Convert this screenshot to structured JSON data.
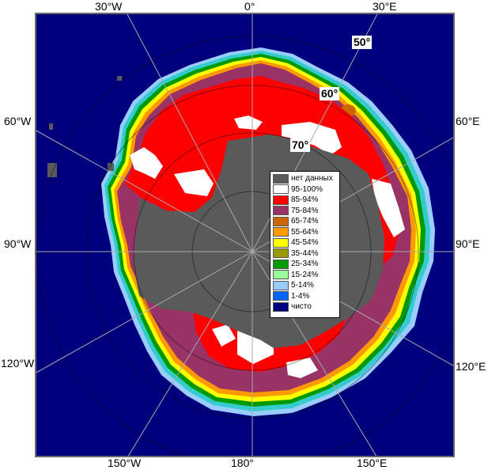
{
  "map": {
    "longitude_labels": {
      "top": [
        "30°W",
        "0°",
        "30°E"
      ],
      "left": [
        "60°W",
        "90°W",
        "120°W"
      ],
      "right": [
        "60°E",
        "90°E",
        "120°E"
      ],
      "bottom": [
        "150°W",
        "180°",
        "150°E"
      ]
    },
    "latitude_labels": [
      "50°",
      "60°",
      "70°"
    ],
    "colors": {
      "ocean_clear": "#00007f",
      "land_no_data": "#5a5a5a",
      "frame": "#6a6a6a",
      "grid": "#a8a8a8"
    }
  },
  "legend": {
    "items": [
      {
        "label": "нет данных",
        "color": "#5a5a5a"
      },
      {
        "label": "95-100%",
        "color": "#ffffff"
      },
      {
        "label": "85-94%",
        "color": "#ff0000"
      },
      {
        "label": "75-84%",
        "color": "#993366"
      },
      {
        "label": "65-74%",
        "color": "#cc6600"
      },
      {
        "label": "55-64%",
        "color": "#ff9900"
      },
      {
        "label": "45-54%",
        "color": "#ffff00"
      },
      {
        "label": "35-44%",
        "color": "#999900"
      },
      {
        "label": "25-34%",
        "color": "#009900"
      },
      {
        "label": "15-24%",
        "color": "#99ff99"
      },
      {
        "label": "5-14%",
        "color": "#99ccff"
      },
      {
        "label": "1-4%",
        "color": "#0066ff"
      },
      {
        "label": "чисто",
        "color": "#00007f"
      }
    ]
  }
}
